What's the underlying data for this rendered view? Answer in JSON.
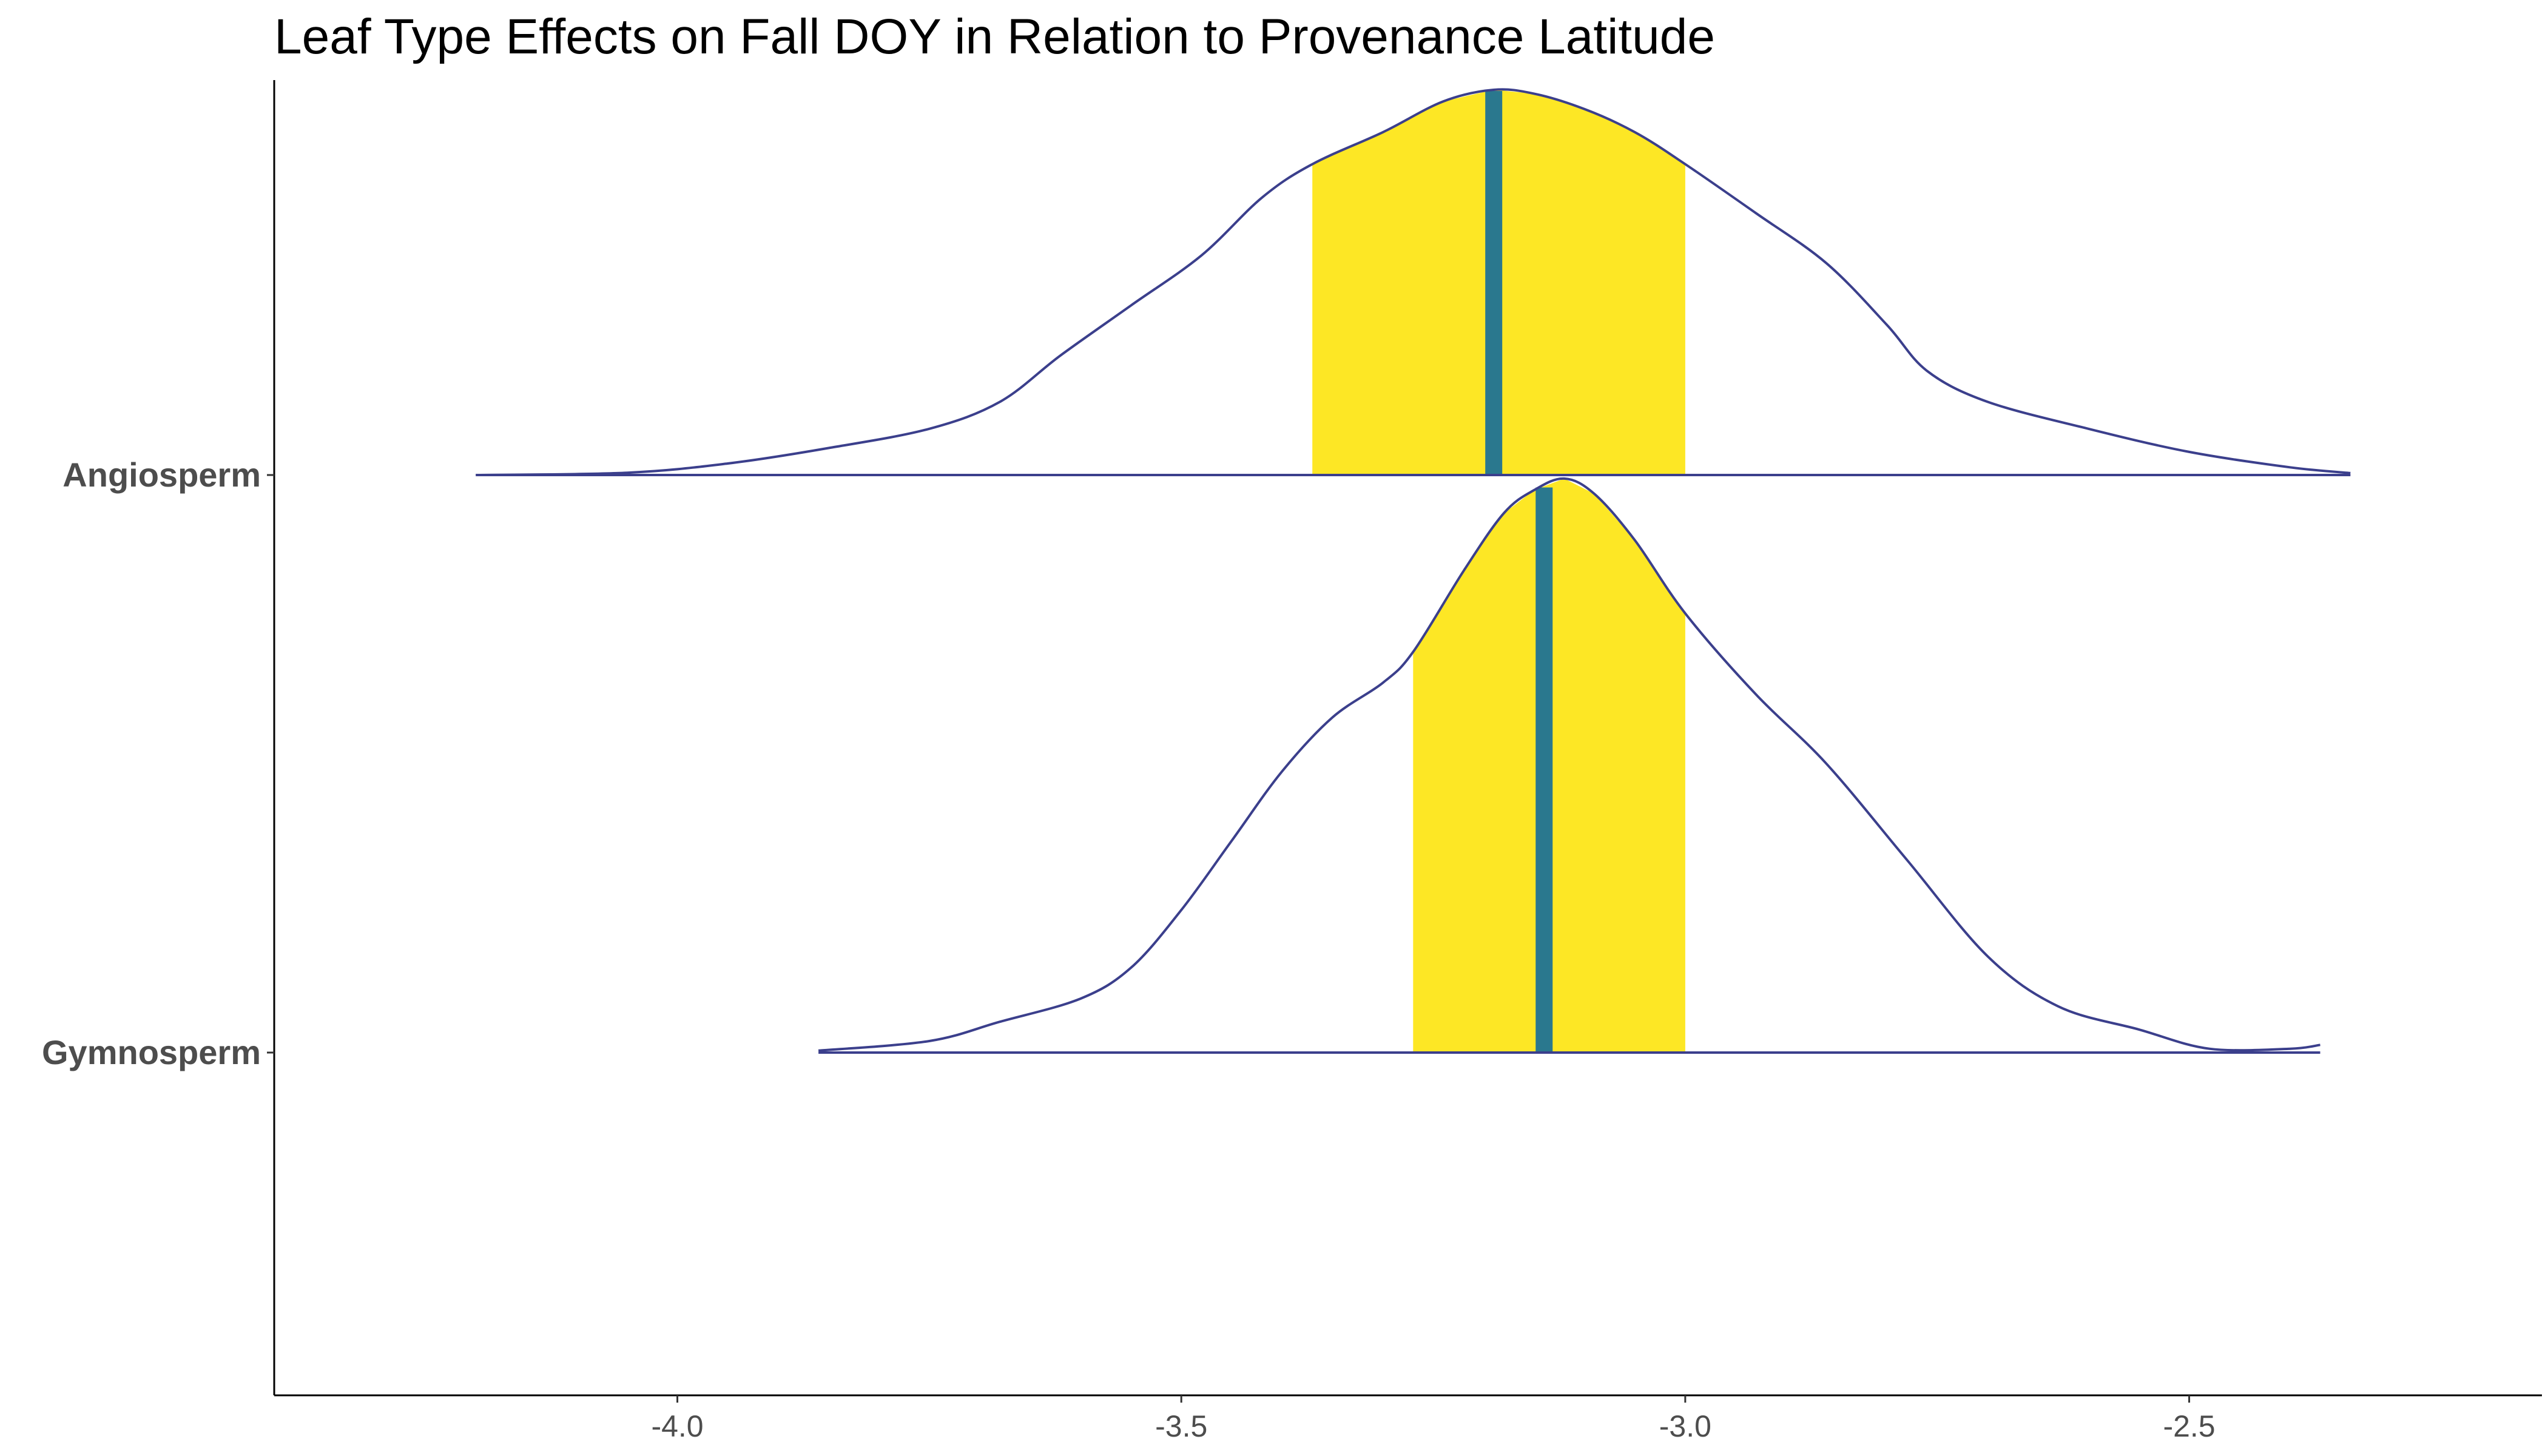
{
  "chart_data": {
    "type": "ridgeline",
    "title": "Leaf Type Effects on Fall DOY in Relation to Provenance Latitude",
    "xlabel": "",
    "ylabel": "",
    "xlim": [
      -4.4,
      -2.15
    ],
    "x_ticks": [
      -4.0,
      -3.5,
      -3.0,
      -2.5
    ],
    "x_tick_labels": [
      "-4.0",
      "-3.5",
      "-3.0",
      "-2.5"
    ],
    "grid": false,
    "legend": "none",
    "colors": {
      "outline": "#3b3f8c",
      "interval_fill": "#fde725",
      "median_line": "#2a788e"
    },
    "series": [
      {
        "name": "Angiosperm",
        "x": [
          -4.2,
          -4.05,
          -3.95,
          -3.85,
          -3.75,
          -3.68,
          -3.62,
          -3.55,
          -3.48,
          -3.42,
          -3.37,
          -3.3,
          -3.24,
          -3.19,
          -3.15,
          -3.1,
          -3.05,
          -3.0,
          -2.93,
          -2.86,
          -2.8,
          -2.76,
          -2.7,
          -2.6,
          -2.5,
          -2.4,
          -2.34
        ],
        "density": [
          0.0,
          0.006,
          0.03,
          0.07,
          0.12,
          0.19,
          0.31,
          0.44,
          0.57,
          0.72,
          0.807,
          0.89,
          0.97,
          1.0,
          0.99,
          0.95,
          0.89,
          0.807,
          0.68,
          0.55,
          0.39,
          0.27,
          0.19,
          0.12,
          0.06,
          0.02,
          0.005
        ],
        "interval": [
          -3.37,
          -3.0
        ],
        "median": -3.19
      },
      {
        "name": "Gymnosperm",
        "x": [
          -3.86,
          -3.75,
          -3.68,
          -3.6,
          -3.55,
          -3.5,
          -3.45,
          -3.4,
          -3.35,
          -3.3,
          -3.27,
          -3.22,
          -3.18,
          -3.15,
          -3.12,
          -3.09,
          -3.05,
          -3.0,
          -2.93,
          -2.86,
          -2.78,
          -2.7,
          -2.63,
          -2.55,
          -2.48,
          -2.4,
          -2.37
        ],
        "density": [
          0.005,
          0.03,
          0.08,
          0.14,
          0.22,
          0.37,
          0.55,
          0.73,
          0.87,
          0.96,
          1.04,
          1.25,
          1.4,
          1.46,
          1.49,
          1.45,
          1.33,
          1.14,
          0.93,
          0.75,
          0.5,
          0.25,
          0.12,
          0.06,
          0.01,
          0.01,
          0.02
        ],
        "interval": [
          -3.27,
          -3.0
        ],
        "median": -3.14
      }
    ]
  }
}
